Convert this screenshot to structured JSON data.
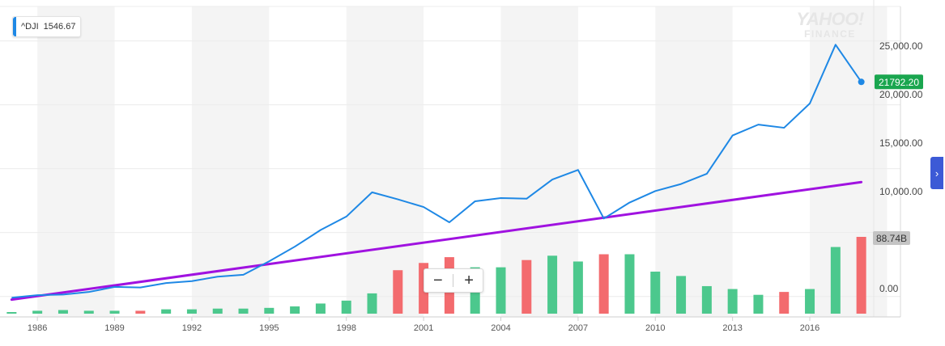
{
  "legend": {
    "symbol": "^DJI",
    "value": "1546.67",
    "color": "#1e88e5"
  },
  "watermark": {
    "line1": "YAHOO!",
    "line2": "FINANCE"
  },
  "zoom": {
    "minus": "−",
    "plus": "+"
  },
  "side_tab": {
    "icon": "chevron-right-icon",
    "glyph": "›"
  },
  "chart_data": {
    "type": "line",
    "x_tick_labels": [
      "1986",
      "1989",
      "1992",
      "1995",
      "1998",
      "2001",
      "2004",
      "2007",
      "2010",
      "2013",
      "2016"
    ],
    "y_tick_labels": [
      "25,000.00",
      "20,000.00",
      "15,000.00",
      "10,000.00",
      "00",
      "0.00"
    ],
    "x_range": [
      1984.8,
      2018.2
    ],
    "y_range": [
      3400,
      28200
    ],
    "series": [
      {
        "name": "^DJI",
        "color": "#1e88e5",
        "x": [
          1985,
          1986,
          1987,
          1988,
          1989,
          1990,
          1991,
          1992,
          1993,
          1994,
          1995,
          1996,
          1997,
          1998,
          1999,
          2000,
          2001,
          2002,
          2003,
          2004,
          2005,
          2006,
          2007,
          2008,
          2009,
          2010,
          2011,
          2012,
          2013,
          2014,
          2015,
          2016,
          2017,
          2018
        ],
        "y": [
          4900,
          5100,
          5150,
          5350,
          5750,
          5700,
          6050,
          6200,
          6550,
          6700,
          7750,
          8900,
          10200,
          11250,
          13150,
          12600,
          12000,
          10800,
          12450,
          12700,
          12650,
          14150,
          14900,
          11100,
          12350,
          13250,
          13800,
          14600,
          17600,
          18450,
          18200,
          20100,
          24700,
          21792.2
        ]
      },
      {
        "name": "trendline",
        "color": "#a012e0",
        "x": [
          1985,
          2018
        ],
        "y": [
          4750,
          13950
        ]
      }
    ],
    "last_value_badge": {
      "value": "21792.20",
      "color": "#1aa64f"
    },
    "volume": {
      "badge": "88.74B",
      "up_color": "#4cc88d",
      "down_color": "#f36b6e",
      "x": [
        1985,
        1986,
        1987,
        1988,
        1989,
        1990,
        1991,
        1992,
        1993,
        1994,
        1995,
        1996,
        1997,
        1998,
        1999,
        2000,
        2001,
        2002,
        2003,
        2004,
        2005,
        2006,
        2007,
        2008,
        2009,
        2010,
        2011,
        2012,
        2013,
        2014,
        2015,
        2016,
        2017,
        2018
      ],
      "values": [
        1,
        2,
        2.5,
        2,
        2,
        2,
        3,
        3,
        3.5,
        3.5,
        4,
        5,
        7,
        9,
        14,
        30,
        35,
        39,
        32,
        32,
        37,
        40,
        36,
        41,
        41,
        29,
        26,
        19,
        17,
        13,
        15,
        17,
        46,
        53
      ],
      "direction": [
        "up",
        "up",
        "up",
        "up",
        "up",
        "down",
        "up",
        "up",
        "up",
        "up",
        "up",
        "up",
        "up",
        "up",
        "up",
        "down",
        "down",
        "down",
        "up",
        "up",
        "down",
        "up",
        "up",
        "down",
        "up",
        "up",
        "up",
        "up",
        "up",
        "up",
        "down",
        "up",
        "up",
        "down"
      ]
    },
    "grid": true,
    "legend_position": "top-left"
  }
}
